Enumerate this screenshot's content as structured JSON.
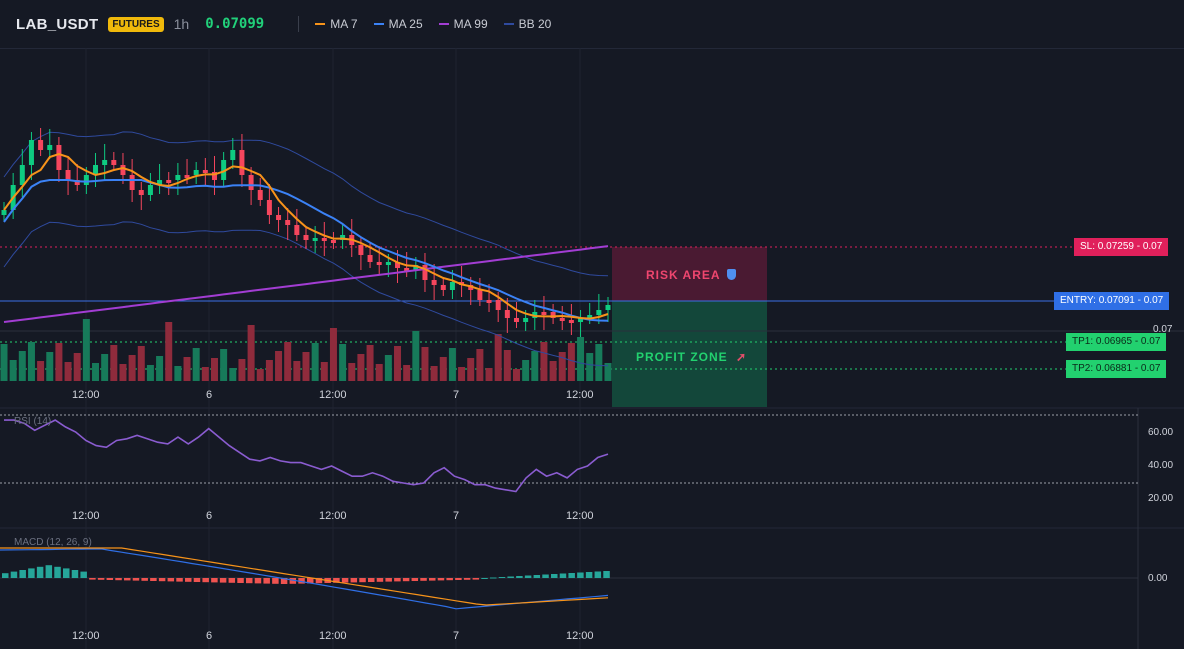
{
  "header": {
    "symbol": "LAB_USDT",
    "badge": "FUTURES",
    "timeframe": "1h",
    "last_price": "0.07099",
    "legend": [
      {
        "label": "MA 7",
        "color": "#f7931a"
      },
      {
        "label": "MA 25",
        "color": "#3b82f6"
      },
      {
        "label": "MA 99",
        "color": "#a23dd3"
      },
      {
        "label": "BB 20",
        "color": "#2f4a9e"
      }
    ]
  },
  "price_axis": {
    "level_label": "0.07"
  },
  "levels": {
    "sl": {
      "label": "SL: 0.07259 - 0.07",
      "color": "#e0205b"
    },
    "entry": {
      "label": "ENTRY: 0.07091 - 0.07",
      "color": "#2f6fe6"
    },
    "tp1": {
      "label": "TP1: 0.06965 - 0.07",
      "color": "#22d16f"
    },
    "tp2": {
      "label": "TP2: 0.06881 - 0.07",
      "color": "#22d16f"
    }
  },
  "zones": {
    "risk": {
      "label": "RISK AREA",
      "icon": "shield-icon"
    },
    "profit": {
      "label": "PROFIT ZONE",
      "icon": "rocket-icon"
    }
  },
  "time_axis": [
    "12:00",
    "6",
    "12:00",
    "7",
    "12:00"
  ],
  "rsi": {
    "label": "RSI (14)",
    "ticks": [
      "60.00",
      "40.00",
      "20.00"
    ],
    "values": [
      67,
      67,
      65,
      61,
      64,
      67,
      63,
      60,
      55,
      52,
      51,
      55,
      56,
      58,
      56,
      54,
      53,
      57,
      53,
      57,
      62,
      57,
      52,
      48,
      44,
      43,
      45,
      43,
      42,
      42,
      40,
      38,
      40,
      37,
      34,
      34,
      36,
      34,
      31,
      30,
      29,
      30,
      36,
      39,
      34,
      32,
      29,
      29,
      27,
      26,
      25,
      33,
      38,
      34,
      36,
      33,
      38,
      40,
      45,
      47
    ]
  },
  "macd": {
    "label": "MACD (12, 26, 9)",
    "ticks": [
      "0.00"
    ]
  },
  "colors": {
    "up": "#0ecb81",
    "down": "#f6465d",
    "ma7": "#f7931a",
    "ma25": "#3b82f6",
    "ma99": "#a23dd3",
    "bb": "#2f4a9e"
  }
}
